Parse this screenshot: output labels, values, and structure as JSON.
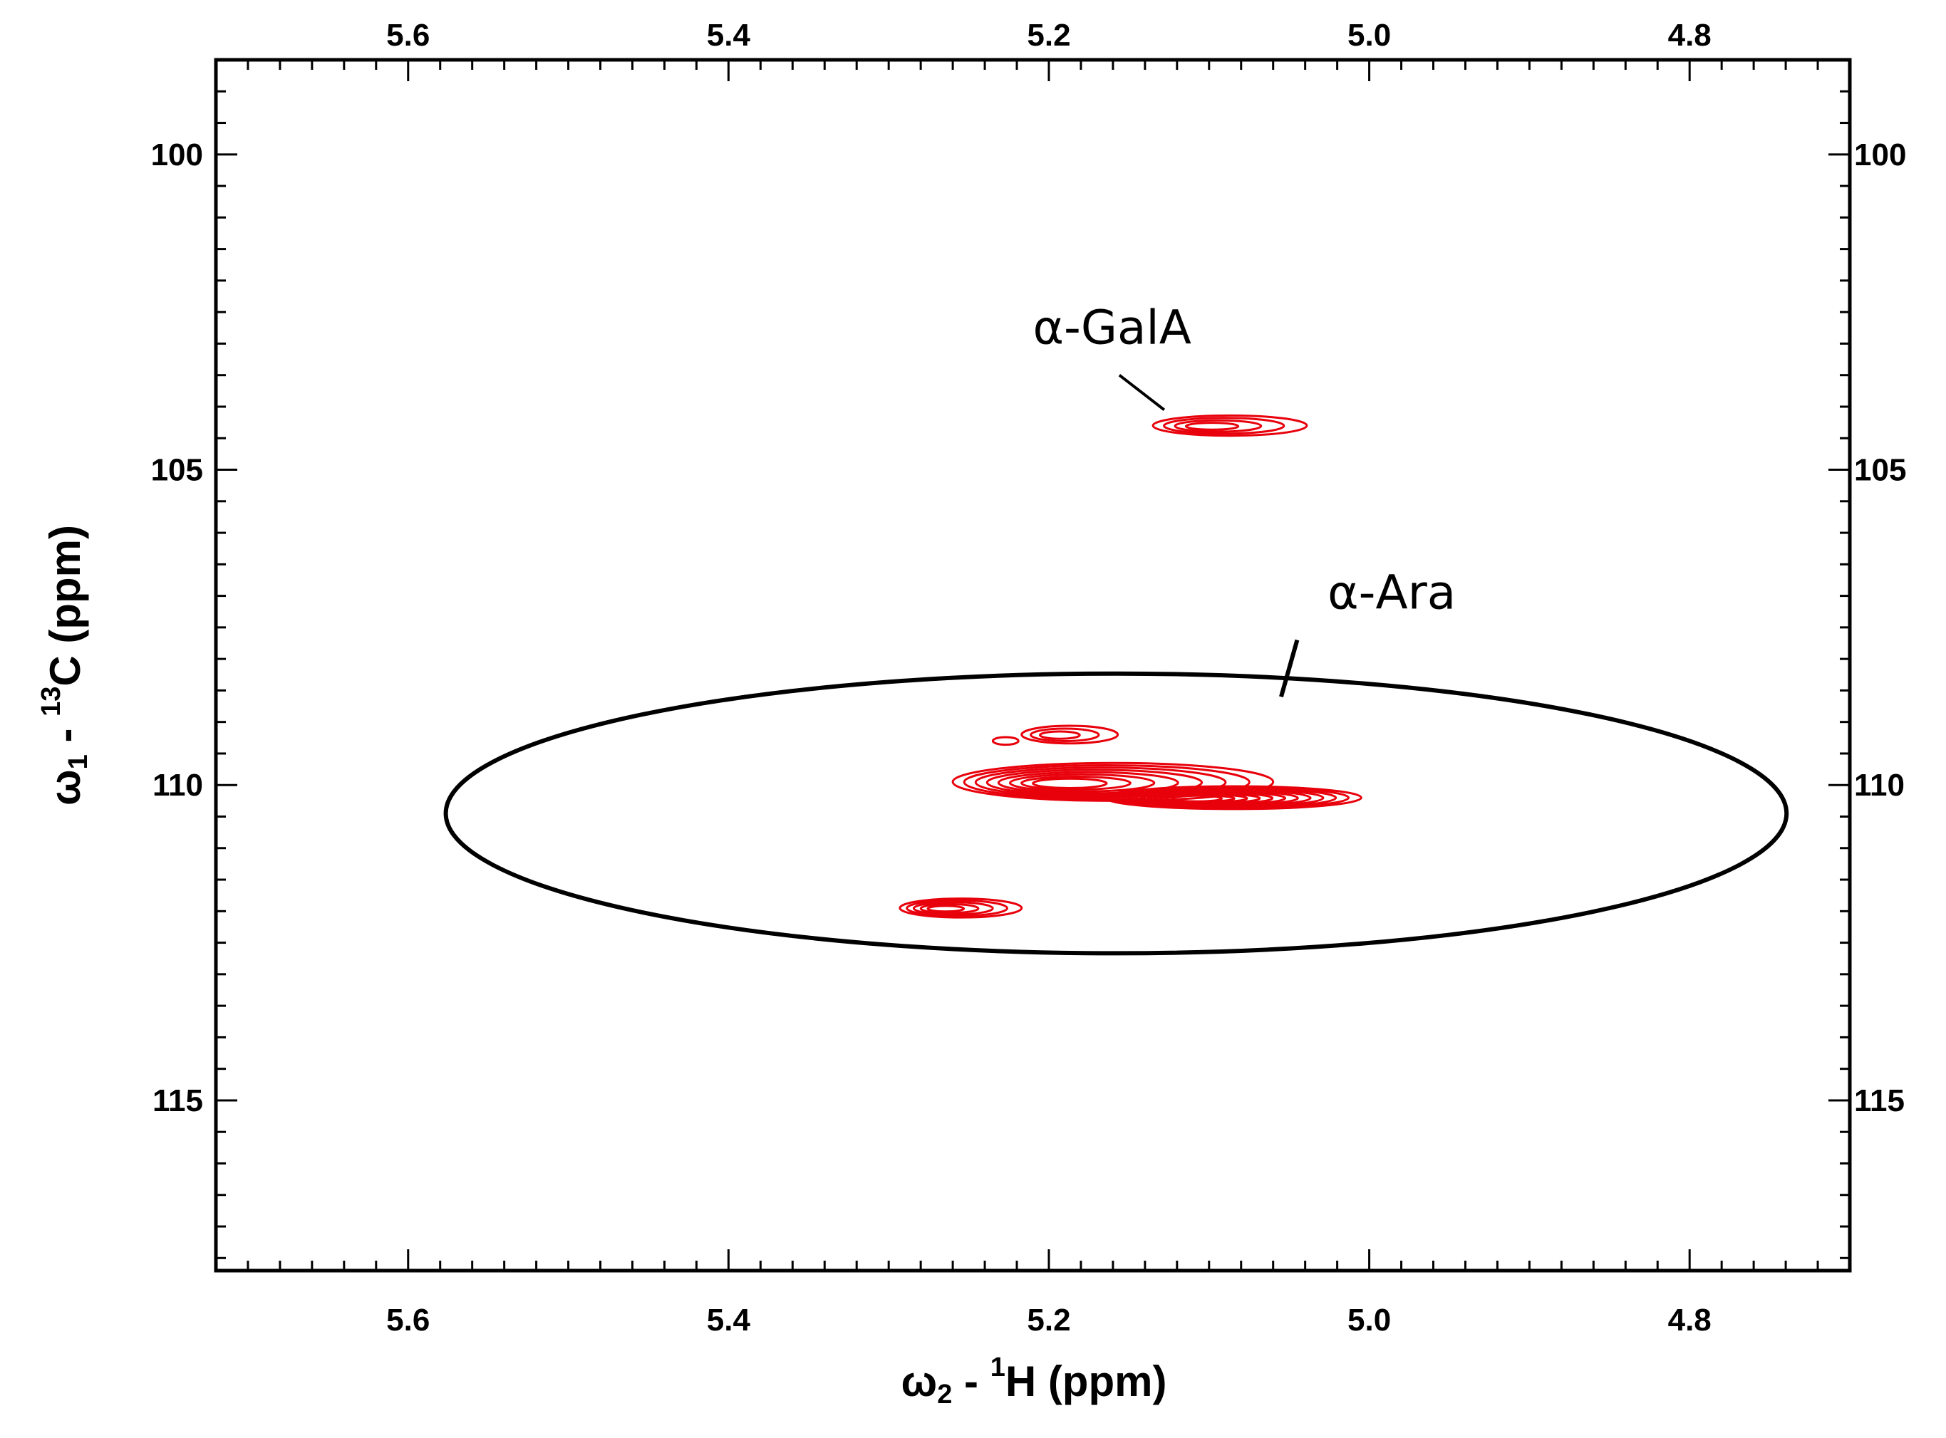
{
  "chart_data": {
    "type": "contour",
    "title": "",
    "x_axis": {
      "label_symbol": "ω",
      "label_sub": "2",
      "label_mid": " - ",
      "label_sup": "1",
      "label_tail": "H  (ppm)",
      "range": [
        5.72,
        4.7
      ],
      "reversed": true,
      "ticks": [
        5.6,
        5.4,
        5.2,
        5.0,
        4.8
      ],
      "tick_labels": [
        "5.6",
        "5.4",
        "5.2",
        "5.0",
        "4.8"
      ],
      "minor_step": 0.02,
      "mirrored_top": true
    },
    "y_axis": {
      "label_symbol": "ω",
      "label_sub": "1",
      "label_mid": " - ",
      "label_sup": "13",
      "label_tail": "C  (ppm)",
      "range": [
        98.5,
        117.7
      ],
      "reversed": true,
      "ticks": [
        100,
        105,
        110,
        115
      ],
      "tick_labels": [
        "100",
        "105",
        "110",
        "115"
      ],
      "minor_step": 0.5,
      "mirrored_right": true
    },
    "grid": false,
    "contour_color": "#e8000b",
    "peaks": [
      {
        "id": "galA",
        "h": 5.087,
        "c": 104.3,
        "w": 0.048,
        "hgt": 0.16,
        "levels": 4
      },
      {
        "id": "ara-top",
        "h": 5.187,
        "c": 109.2,
        "w": 0.03,
        "hgt": 0.14,
        "levels": 3
      },
      {
        "id": "ara-dot",
        "h": 5.227,
        "c": 109.3,
        "w": 0.008,
        "hgt": 0.06,
        "levels": 1
      },
      {
        "id": "ara-main-left",
        "h": 5.16,
        "c": 109.95,
        "w": 0.1,
        "hgt": 0.3,
        "levels": 8
      },
      {
        "id": "ara-main-right",
        "h": 5.085,
        "c": 110.2,
        "w": 0.08,
        "hgt": 0.18,
        "levels": 12
      },
      {
        "id": "side-peak",
        "h": 5.255,
        "c": 111.95,
        "w": 0.038,
        "hgt": 0.15,
        "levels": 5
      }
    ],
    "annotations": [
      {
        "id": "galA",
        "text": "α-GalA",
        "text_h": 5.21,
        "text_c": 103.0,
        "line": [
          [
            5.156,
            103.5
          ],
          [
            5.128,
            104.05
          ]
        ]
      },
      {
        "id": "ara",
        "text": "α-Ara",
        "text_h": 5.026,
        "text_c": 107.2,
        "line": [
          [
            5.045,
            107.7
          ],
          [
            5.055,
            108.6
          ]
        ]
      }
    ],
    "enclosure": {
      "target": "ara",
      "h": 5.158,
      "c": 110.45,
      "rh": 0.186,
      "rc": 2.55
    }
  }
}
